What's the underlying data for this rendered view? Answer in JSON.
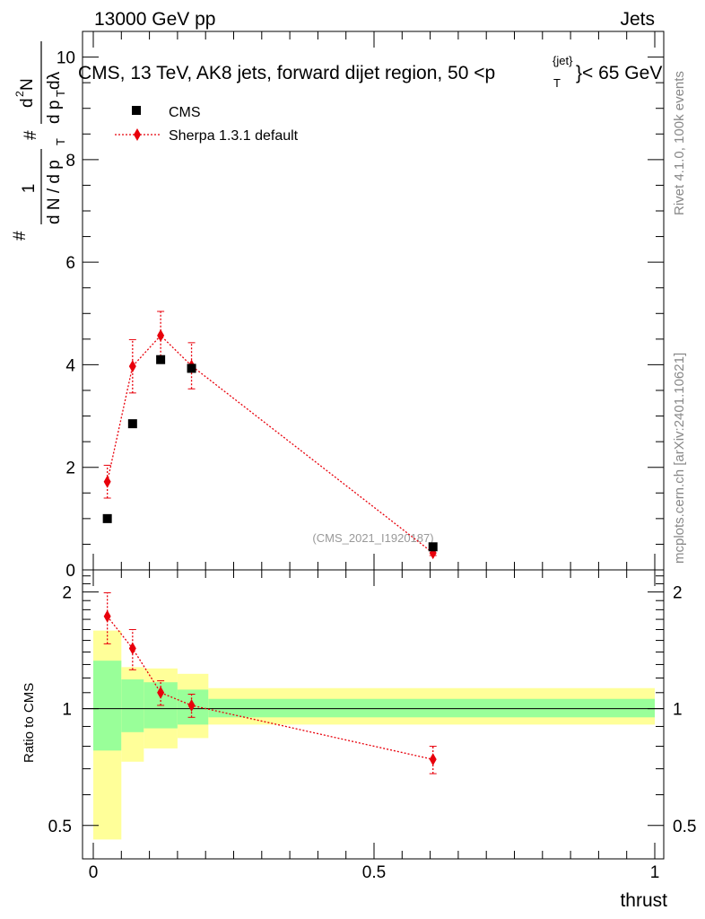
{
  "header": {
    "left": "13000 GeV pp",
    "right": "Jets",
    "title": "CMS, 13 TeV, AK8 jets, forward dijet region, 50 <p",
    "title_sup": "{jet}",
    "title_sub": "T",
    "title_end": "}< 65 GeV"
  },
  "side_labels": {
    "rivet": "Rivet 4.1.0,  100k events",
    "mcplots": "mcplots.cern.ch [arXiv:2401.10621]"
  },
  "watermark": "(CMS_2021_I1920187)",
  "chart_data": [
    {
      "type": "scatter",
      "panel": "main",
      "xlabel": "thrust",
      "ylabel": "1 / (dN/dp_T) · d²N / (dp_T dλ)",
      "ylabel_parts": {
        "frac_num": "1",
        "frac_den": "d N / d p",
        "frac_den_sub": "T",
        "right_num": "d",
        "right_num_sup": "2",
        "right_num_end": "N",
        "right_den": "d p",
        "right_den_sub": "T",
        "right_den_end": " dλ",
        "hash": "#"
      },
      "xlim": [
        0,
        1
      ],
      "ylim": [
        0,
        10.5
      ],
      "yticks": [
        0,
        2,
        4,
        6,
        8,
        10
      ],
      "ytick_labels": [
        "0",
        "2",
        "4",
        "6",
        "8",
        "10"
      ],
      "series": [
        {
          "name": "CMS",
          "marker": "square",
          "color": "#000000",
          "x": [
            0.025,
            0.07,
            0.12,
            0.175,
            0.605
          ],
          "y": [
            1.0,
            2.85,
            4.1,
            3.93,
            0.45
          ]
        },
        {
          "name": "Sherpa 1.3.1 default",
          "marker": "diamond",
          "line": "dotted",
          "color": "#e8000b",
          "x": [
            0.025,
            0.07,
            0.12,
            0.175,
            0.605
          ],
          "y": [
            1.72,
            3.97,
            4.57,
            3.98,
            0.33
          ],
          "yerr": [
            0.32,
            0.52,
            0.47,
            0.45,
            0.05
          ]
        }
      ],
      "legend_position": "top-left"
    },
    {
      "type": "ratio",
      "panel": "ratio",
      "xlabel": "thrust",
      "ylabel": "Ratio to CMS",
      "xlim": [
        0,
        1
      ],
      "ylim": [
        0.41,
        2.28
      ],
      "yscale": "log",
      "yticks": [
        0.5,
        1,
        2
      ],
      "ytick_labels": [
        "0.5",
        "1",
        "2"
      ],
      "xticks": [
        0,
        0.5,
        1
      ],
      "xtick_labels": [
        "0",
        "0.5",
        "1"
      ],
      "bands": {
        "bin_edges": [
          0,
          0.05,
          0.09,
          0.15,
          0.205,
          1.0
        ],
        "inner_lo": [
          0.78,
          0.87,
          0.89,
          0.91,
          0.95
        ],
        "inner_hi": [
          1.33,
          1.19,
          1.17,
          1.12,
          1.06
        ],
        "outer_lo": [
          0.46,
          0.73,
          0.79,
          0.84,
          0.91
        ],
        "outer_hi": [
          1.59,
          1.28,
          1.27,
          1.23,
          1.13
        ],
        "inner_color": "#99ff99",
        "outer_color": "#ffff99"
      },
      "series": [
        {
          "name": "Sherpa 1.3.1 default",
          "marker": "diamond",
          "line": "dotted",
          "color": "#e8000b",
          "x": [
            0.025,
            0.07,
            0.12,
            0.175,
            0.605
          ],
          "y": [
            1.73,
            1.43,
            1.1,
            1.02,
            0.74
          ],
          "yerr": [
            0.26,
            0.17,
            0.08,
            0.07,
            0.06
          ]
        }
      ]
    }
  ]
}
